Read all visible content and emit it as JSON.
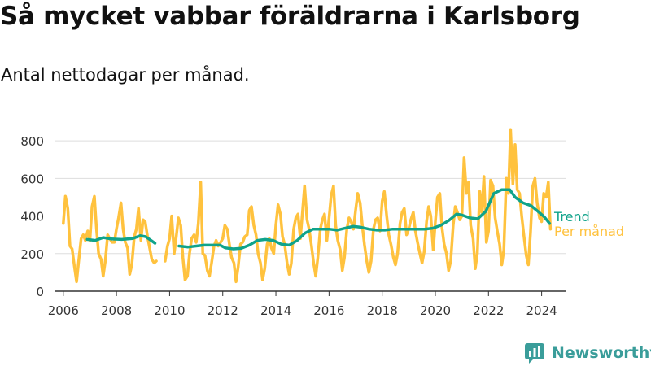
{
  "title": "Så mycket vabbar föräldrarna i Karlsborg",
  "subtitle": "Antal nettodagar per månad.",
  "brand": {
    "name": "Newsworthy",
    "icon": "newsworthy-logo-icon"
  },
  "colors": {
    "monthly": "#ffc23e",
    "trend": "#10a38a",
    "axis": "#333333",
    "grid": "#dddddd",
    "text": "#333333"
  },
  "chart_data": {
    "type": "line",
    "ylim": [
      0,
      900
    ],
    "xlim": [
      2005.7,
      2024.9
    ],
    "yticks": [
      0,
      200,
      400,
      600,
      800
    ],
    "xticks": [
      2006,
      2008,
      2010,
      2012,
      2014,
      2016,
      2018,
      2020,
      2022,
      2024
    ],
    "grid": true,
    "legend": "direct labels at line ends",
    "series": [
      {
        "name": "Per månad",
        "points": [
          [
            2006.0,
            360
          ],
          [
            2006.08,
            505
          ],
          [
            2006.17,
            440
          ],
          [
            2006.25,
            240
          ],
          [
            2006.33,
            225
          ],
          [
            2006.42,
            130
          ],
          [
            2006.5,
            50
          ],
          [
            2006.58,
            160
          ],
          [
            2006.67,
            280
          ],
          [
            2006.75,
            300
          ],
          [
            2006.83,
            270
          ],
          [
            2006.92,
            320
          ],
          [
            2007.0,
            270
          ],
          [
            2007.08,
            450
          ],
          [
            2007.17,
            505
          ],
          [
            2007.25,
            330
          ],
          [
            2007.33,
            200
          ],
          [
            2007.42,
            170
          ],
          [
            2007.5,
            80
          ],
          [
            2007.58,
            160
          ],
          [
            2007.67,
            300
          ],
          [
            2007.75,
            280
          ],
          [
            2007.83,
            260
          ],
          [
            2007.92,
            260
          ],
          [
            2008.0,
            330
          ],
          [
            2008.08,
            390
          ],
          [
            2008.17,
            470
          ],
          [
            2008.25,
            330
          ],
          [
            2008.33,
            260
          ],
          [
            2008.42,
            230
          ],
          [
            2008.5,
            90
          ],
          [
            2008.58,
            140
          ],
          [
            2008.67,
            290
          ],
          [
            2008.75,
            330
          ],
          [
            2008.83,
            440
          ],
          [
            2008.92,
            270
          ],
          [
            2009.0,
            380
          ],
          [
            2009.08,
            370
          ],
          [
            2009.17,
            290
          ],
          [
            2009.25,
            230
          ],
          [
            2009.33,
            170
          ],
          [
            2009.42,
            150
          ],
          [
            2009.5,
            160
          ],
          [
            2009.83,
            160
          ],
          [
            2009.92,
            240
          ],
          [
            2010.0,
            280
          ],
          [
            2010.08,
            400
          ],
          [
            2010.17,
            200
          ],
          [
            2010.25,
            290
          ],
          [
            2010.33,
            390
          ],
          [
            2010.42,
            350
          ],
          [
            2010.5,
            180
          ],
          [
            2010.58,
            60
          ],
          [
            2010.67,
            80
          ],
          [
            2010.75,
            200
          ],
          [
            2010.83,
            280
          ],
          [
            2010.92,
            300
          ],
          [
            2011.0,
            260
          ],
          [
            2011.08,
            360
          ],
          [
            2011.17,
            580
          ],
          [
            2011.25,
            200
          ],
          [
            2011.33,
            190
          ],
          [
            2011.42,
            110
          ],
          [
            2011.5,
            80
          ],
          [
            2011.58,
            150
          ],
          [
            2011.67,
            240
          ],
          [
            2011.75,
            270
          ],
          [
            2011.83,
            240
          ],
          [
            2011.92,
            260
          ],
          [
            2012.0,
            280
          ],
          [
            2012.08,
            350
          ],
          [
            2012.17,
            330
          ],
          [
            2012.25,
            250
          ],
          [
            2012.33,
            180
          ],
          [
            2012.42,
            150
          ],
          [
            2012.5,
            50
          ],
          [
            2012.58,
            130
          ],
          [
            2012.67,
            250
          ],
          [
            2012.75,
            260
          ],
          [
            2012.83,
            290
          ],
          [
            2012.92,
            300
          ],
          [
            2013.0,
            430
          ],
          [
            2013.08,
            450
          ],
          [
            2013.17,
            350
          ],
          [
            2013.25,
            300
          ],
          [
            2013.33,
            200
          ],
          [
            2013.42,
            150
          ],
          [
            2013.5,
            60
          ],
          [
            2013.58,
            120
          ],
          [
            2013.67,
            250
          ],
          [
            2013.75,
            280
          ],
          [
            2013.83,
            230
          ],
          [
            2013.92,
            200
          ],
          [
            2014.0,
            350
          ],
          [
            2014.08,
            460
          ],
          [
            2014.17,
            410
          ],
          [
            2014.25,
            290
          ],
          [
            2014.33,
            250
          ],
          [
            2014.42,
            150
          ],
          [
            2014.5,
            90
          ],
          [
            2014.58,
            150
          ],
          [
            2014.67,
            330
          ],
          [
            2014.75,
            390
          ],
          [
            2014.83,
            410
          ],
          [
            2014.92,
            280
          ],
          [
            2015.0,
            420
          ],
          [
            2015.08,
            560
          ],
          [
            2015.17,
            380
          ],
          [
            2015.25,
            330
          ],
          [
            2015.33,
            250
          ],
          [
            2015.42,
            150
          ],
          [
            2015.5,
            80
          ],
          [
            2015.58,
            180
          ],
          [
            2015.67,
            330
          ],
          [
            2015.75,
            380
          ],
          [
            2015.83,
            410
          ],
          [
            2015.92,
            270
          ],
          [
            2016.0,
            390
          ],
          [
            2016.08,
            510
          ],
          [
            2016.17,
            560
          ],
          [
            2016.25,
            350
          ],
          [
            2016.33,
            270
          ],
          [
            2016.42,
            220
          ],
          [
            2016.5,
            110
          ],
          [
            2016.58,
            180
          ],
          [
            2016.67,
            330
          ],
          [
            2016.75,
            390
          ],
          [
            2016.83,
            370
          ],
          [
            2016.92,
            330
          ],
          [
            2017.0,
            430
          ],
          [
            2017.08,
            520
          ],
          [
            2017.17,
            470
          ],
          [
            2017.25,
            350
          ],
          [
            2017.33,
            250
          ],
          [
            2017.42,
            160
          ],
          [
            2017.5,
            100
          ],
          [
            2017.58,
            160
          ],
          [
            2017.67,
            330
          ],
          [
            2017.75,
            380
          ],
          [
            2017.83,
            390
          ],
          [
            2017.92,
            320
          ],
          [
            2018.0,
            480
          ],
          [
            2018.08,
            530
          ],
          [
            2018.17,
            400
          ],
          [
            2018.25,
            300
          ],
          [
            2018.33,
            250
          ],
          [
            2018.42,
            180
          ],
          [
            2018.5,
            140
          ],
          [
            2018.58,
            200
          ],
          [
            2018.67,
            360
          ],
          [
            2018.75,
            420
          ],
          [
            2018.83,
            440
          ],
          [
            2018.92,
            300
          ],
          [
            2019.0,
            330
          ],
          [
            2019.08,
            380
          ],
          [
            2019.17,
            420
          ],
          [
            2019.25,
            320
          ],
          [
            2019.33,
            260
          ],
          [
            2019.42,
            200
          ],
          [
            2019.5,
            150
          ],
          [
            2019.58,
            210
          ],
          [
            2019.67,
            370
          ],
          [
            2019.75,
            450
          ],
          [
            2019.83,
            400
          ],
          [
            2019.92,
            220
          ],
          [
            2020.0,
            370
          ],
          [
            2020.08,
            500
          ],
          [
            2020.17,
            520
          ],
          [
            2020.25,
            340
          ],
          [
            2020.33,
            250
          ],
          [
            2020.42,
            200
          ],
          [
            2020.5,
            110
          ],
          [
            2020.58,
            160
          ],
          [
            2020.67,
            350
          ],
          [
            2020.75,
            450
          ],
          [
            2020.83,
            420
          ],
          [
            2020.92,
            380
          ],
          [
            2021.0,
            400
          ],
          [
            2021.08,
            710
          ],
          [
            2021.17,
            520
          ],
          [
            2021.25,
            580
          ],
          [
            2021.33,
            350
          ],
          [
            2021.42,
            280
          ],
          [
            2021.5,
            120
          ],
          [
            2021.58,
            200
          ],
          [
            2021.67,
            530
          ],
          [
            2021.75,
            420
          ],
          [
            2021.83,
            610
          ],
          [
            2021.92,
            260
          ],
          [
            2022.0,
            320
          ],
          [
            2022.08,
            590
          ],
          [
            2022.17,
            560
          ],
          [
            2022.25,
            390
          ],
          [
            2022.33,
            320
          ],
          [
            2022.42,
            250
          ],
          [
            2022.5,
            140
          ],
          [
            2022.58,
            220
          ],
          [
            2022.67,
            600
          ],
          [
            2022.75,
            520
          ],
          [
            2022.83,
            860
          ],
          [
            2022.92,
            570
          ],
          [
            2023.0,
            780
          ],
          [
            2023.08,
            540
          ],
          [
            2023.17,
            520
          ],
          [
            2023.25,
            400
          ],
          [
            2023.33,
            300
          ],
          [
            2023.42,
            190
          ],
          [
            2023.5,
            140
          ],
          [
            2023.58,
            310
          ],
          [
            2023.67,
            560
          ],
          [
            2023.75,
            600
          ],
          [
            2023.83,
            470
          ],
          [
            2023.92,
            390
          ],
          [
            2024.0,
            370
          ],
          [
            2024.08,
            520
          ],
          [
            2024.17,
            500
          ],
          [
            2024.25,
            580
          ],
          [
            2024.33,
            330
          ]
        ]
      },
      {
        "name": "Trend",
        "segments": [
          [
            [
              2006.9,
              275
            ],
            [
              2007.2,
              270
            ],
            [
              2007.5,
              285
            ],
            [
              2007.8,
              278
            ],
            [
              2008.2,
              275
            ],
            [
              2008.6,
              280
            ],
            [
              2008.9,
              295
            ],
            [
              2009.1,
              290
            ],
            [
              2009.3,
              270
            ],
            [
              2009.45,
              255
            ]
          ],
          [
            [
              2010.35,
              240
            ],
            [
              2010.7,
              235
            ],
            [
              2011.0,
              240
            ],
            [
              2011.3,
              245
            ],
            [
              2011.6,
              245
            ],
            [
              2011.9,
              245
            ],
            [
              2012.1,
              230
            ],
            [
              2012.4,
              225
            ],
            [
              2012.7,
              228
            ],
            [
              2013.0,
              245
            ],
            [
              2013.3,
              270
            ],
            [
              2013.6,
              275
            ],
            [
              2013.9,
              270
            ],
            [
              2014.2,
              250
            ],
            [
              2014.5,
              245
            ],
            [
              2014.8,
              270
            ],
            [
              2015.1,
              310
            ],
            [
              2015.4,
              330
            ],
            [
              2015.7,
              330
            ],
            [
              2016.0,
              330
            ],
            [
              2016.3,
              325
            ],
            [
              2016.6,
              335
            ],
            [
              2016.9,
              345
            ],
            [
              2017.2,
              340
            ],
            [
              2017.5,
              330
            ],
            [
              2017.8,
              325
            ],
            [
              2018.1,
              325
            ],
            [
              2018.4,
              330
            ],
            [
              2018.7,
              330
            ],
            [
              2019.0,
              330
            ],
            [
              2019.3,
              330
            ],
            [
              2019.6,
              330
            ],
            [
              2019.9,
              335
            ],
            [
              2020.2,
              350
            ],
            [
              2020.5,
              375
            ],
            [
              2020.8,
              410
            ],
            [
              2021.0,
              405
            ],
            [
              2021.3,
              390
            ],
            [
              2021.6,
              385
            ],
            [
              2021.9,
              425
            ],
            [
              2022.2,
              520
            ],
            [
              2022.5,
              540
            ],
            [
              2022.8,
              540
            ],
            [
              2023.0,
              500
            ],
            [
              2023.3,
              470
            ],
            [
              2023.6,
              455
            ],
            [
              2023.9,
              420
            ],
            [
              2024.1,
              395
            ],
            [
              2024.3,
              360
            ]
          ]
        ]
      }
    ],
    "end_labels": [
      {
        "text": "Trend",
        "series": "Trend"
      },
      {
        "text": "Per månad",
        "series": "Per månad"
      }
    ]
  }
}
